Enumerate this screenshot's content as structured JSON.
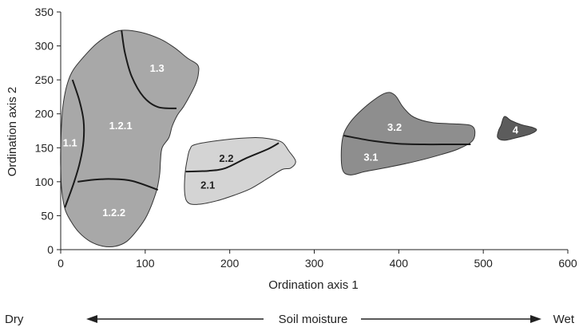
{
  "chart_data": {
    "type": "scatter",
    "subtype": "ordination-region-map",
    "title": "",
    "xlabel": "Ordination axis 1",
    "ylabel": "Ordination axis 2",
    "xlim": [
      0,
      600
    ],
    "ylim": [
      0,
      350
    ],
    "xticks": [
      0,
      100,
      200,
      300,
      400,
      500,
      600
    ],
    "yticks": [
      0,
      50,
      100,
      150,
      200,
      250,
      300,
      350
    ],
    "grid": false,
    "legend": "none",
    "gradient": {
      "left": "Dry",
      "center": "Soil moisture",
      "right": "Wet"
    },
    "groups": [
      {
        "id": "1",
        "fill": "#a8a8a8",
        "outline": [
          [
            72,
            323
          ],
          [
            95,
            320
          ],
          [
            118,
            310
          ],
          [
            135,
            297
          ],
          [
            150,
            282
          ],
          [
            162,
            272
          ],
          [
            163,
            260
          ],
          [
            160,
            245
          ],
          [
            152,
            225
          ],
          [
            145,
            210
          ],
          [
            138,
            198
          ],
          [
            132,
            182
          ],
          [
            128,
            165
          ],
          [
            120,
            150
          ],
          [
            118,
            130
          ],
          [
            117,
            110
          ],
          [
            113,
            85
          ],
          [
            102,
            50
          ],
          [
            90,
            28
          ],
          [
            78,
            12
          ],
          [
            65,
            5
          ],
          [
            50,
            5
          ],
          [
            35,
            12
          ],
          [
            22,
            25
          ],
          [
            12,
            42
          ],
          [
            5,
            60
          ],
          [
            1,
            90
          ],
          [
            0,
            120
          ],
          [
            0,
            150
          ],
          [
            1,
            185
          ],
          [
            3,
            215
          ],
          [
            8,
            245
          ],
          [
            15,
            265
          ],
          [
            28,
            285
          ],
          [
            42,
            303
          ],
          [
            57,
            316
          ]
        ],
        "dividers": [
          [
            [
              14,
              250
            ],
            [
              22,
              220
            ],
            [
              27,
              190
            ],
            [
              27,
              160
            ],
            [
              23,
              130
            ],
            [
              16,
              100
            ],
            [
              5,
              62
            ]
          ],
          [
            [
              20,
              100
            ],
            [
              40,
              103
            ],
            [
              60,
              104
            ],
            [
              85,
              101
            ],
            [
              115,
              88
            ]
          ],
          [
            [
              72,
              323
            ],
            [
              76,
              290
            ],
            [
              84,
              255
            ],
            [
              98,
              225
            ],
            [
              115,
              210
            ],
            [
              137,
              208
            ]
          ]
        ],
        "labels": [
          {
            "text": "1.1",
            "x": 11,
            "y": 158,
            "color": "#ffffff"
          },
          {
            "text": "1.2.1",
            "x": 71,
            "y": 183,
            "color": "#ffffff"
          },
          {
            "text": "1.2.2",
            "x": 63,
            "y": 55,
            "color": "#ffffff"
          },
          {
            "text": "1.3",
            "x": 114,
            "y": 268,
            "color": "#ffffff"
          }
        ]
      },
      {
        "id": "2",
        "fill": "#d4d4d4",
        "outline": [
          [
            160,
            155
          ],
          [
            195,
            162
          ],
          [
            230,
            165
          ],
          [
            248,
            163
          ],
          [
            262,
            158
          ],
          [
            270,
            145
          ],
          [
            278,
            130
          ],
          [
            272,
            120
          ],
          [
            262,
            118
          ],
          [
            245,
            105
          ],
          [
            225,
            90
          ],
          [
            205,
            80
          ],
          [
            185,
            72
          ],
          [
            165,
            67
          ],
          [
            152,
            68
          ],
          [
            147,
            80
          ],
          [
            147,
            110
          ],
          [
            150,
            135
          ],
          [
            153,
            148
          ]
        ],
        "dividers": [
          [
            [
              148,
              115
            ],
            [
              175,
              116
            ],
            [
              195,
              120
            ],
            [
              220,
              135
            ],
            [
              245,
              148
            ],
            [
              258,
              157
            ]
          ]
        ],
        "labels": [
          {
            "text": "2.2",
            "x": 196,
            "y": 135,
            "color": "#222222"
          },
          {
            "text": "2.1",
            "x": 174,
            "y": 96,
            "color": "#222222"
          }
        ]
      },
      {
        "id": "3",
        "fill": "#8e8e8e",
        "outline": [
          [
            360,
            210
          ],
          [
            383,
            230
          ],
          [
            395,
            228
          ],
          [
            405,
            210
          ],
          [
            418,
            195
          ],
          [
            440,
            187
          ],
          [
            470,
            185
          ],
          [
            485,
            183
          ],
          [
            490,
            175
          ],
          [
            487,
            160
          ],
          [
            470,
            148
          ],
          [
            450,
            140
          ],
          [
            420,
            130
          ],
          [
            390,
            122
          ],
          [
            360,
            115
          ],
          [
            342,
            110
          ],
          [
            333,
            120
          ],
          [
            333,
            160
          ],
          [
            341,
            185
          ]
        ],
        "dividers": [
          [
            [
              335,
              168
            ],
            [
              370,
              160
            ],
            [
              400,
              156
            ],
            [
              430,
              155
            ],
            [
              460,
              155
            ],
            [
              485,
              155
            ]
          ]
        ],
        "labels": [
          {
            "text": "3.2",
            "x": 395,
            "y": 181,
            "color": "#ffffff"
          },
          {
            "text": "3.1",
            "x": 367,
            "y": 137,
            "color": "#ffffff"
          }
        ]
      },
      {
        "id": "4",
        "fill": "#5c5c5c",
        "outline": [
          [
            521,
            183
          ],
          [
            525,
            196
          ],
          [
            533,
            190
          ],
          [
            545,
            184
          ],
          [
            558,
            180
          ],
          [
            563,
            176
          ],
          [
            555,
            170
          ],
          [
            540,
            165
          ],
          [
            525,
            161
          ],
          [
            517,
            165
          ],
          [
            518,
            175
          ]
        ],
        "dividers": [],
        "labels": [
          {
            "text": "4",
            "x": 538,
            "y": 177,
            "color": "#ffffff"
          }
        ]
      }
    ]
  }
}
